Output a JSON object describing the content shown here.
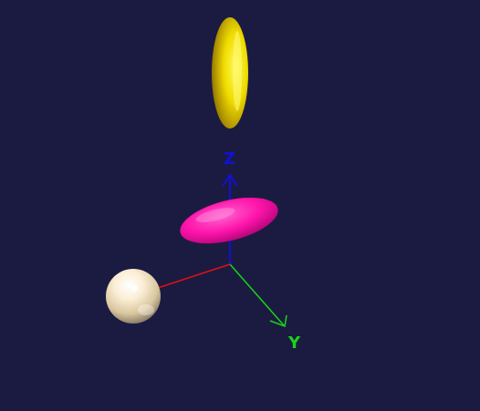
{
  "scene": {
    "background_color": "#1b1b42",
    "axes": {
      "x": {
        "label": "",
        "color": "#e01010"
      },
      "y": {
        "label": "Y",
        "color": "#19d419"
      },
      "z": {
        "label": "Z",
        "color": "#1010d6"
      }
    },
    "objects": [
      {
        "name": "yellow-ellipsoid",
        "shape": "ellipsoid",
        "color": "#f0e000"
      },
      {
        "name": "magenta-ellipsoid",
        "shape": "ellipsoid",
        "color": "#ff10b0"
      },
      {
        "name": "white-sphere",
        "shape": "sphere",
        "color": "#f5efe6"
      }
    ]
  }
}
